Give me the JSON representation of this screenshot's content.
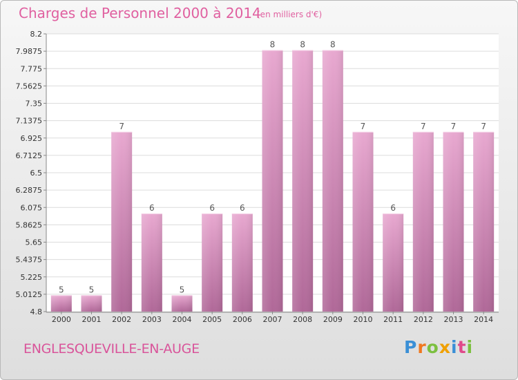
{
  "chart_data": {
    "type": "bar",
    "title": "Charges de Personnel 2000 à 2014",
    "subtitle": "(en milliers d'€)",
    "categories": [
      "2000",
      "2001",
      "2002",
      "2003",
      "2004",
      "2005",
      "2006",
      "2007",
      "2008",
      "2009",
      "2010",
      "2011",
      "2012",
      "2013",
      "2014"
    ],
    "values": [
      5,
      5,
      7,
      6,
      5,
      6,
      6,
      8,
      8,
      8,
      7,
      6,
      7,
      7,
      7
    ],
    "ylim": [
      4.8,
      8.2
    ],
    "yticks": [
      "8.2",
      "7.9875",
      "7.775",
      "7.5625",
      "7.35",
      "7.1375",
      "6.925",
      "6.7125",
      "6.5",
      "6.2875",
      "6.075",
      "5.8625",
      "5.65",
      "5.4375",
      "5.225",
      "5.0125",
      "4.8"
    ],
    "grid": true,
    "bar_color": "#e0a0c8"
  },
  "commune": "ENGLESQUEVILLE-EN-AUGE",
  "logo": {
    "text": "Proxiti",
    "letters": [
      {
        "ch": "P",
        "color": "#3a8fd6"
      },
      {
        "ch": "r",
        "color": "#f07820"
      },
      {
        "ch": "o",
        "color": "#7cc040"
      },
      {
        "ch": "x",
        "color": "#f0a000"
      },
      {
        "ch": "i",
        "color": "#3a8fd6"
      },
      {
        "ch": "t",
        "color": "#e04a8a"
      },
      {
        "ch": "i",
        "color": "#7cc040"
      }
    ]
  }
}
